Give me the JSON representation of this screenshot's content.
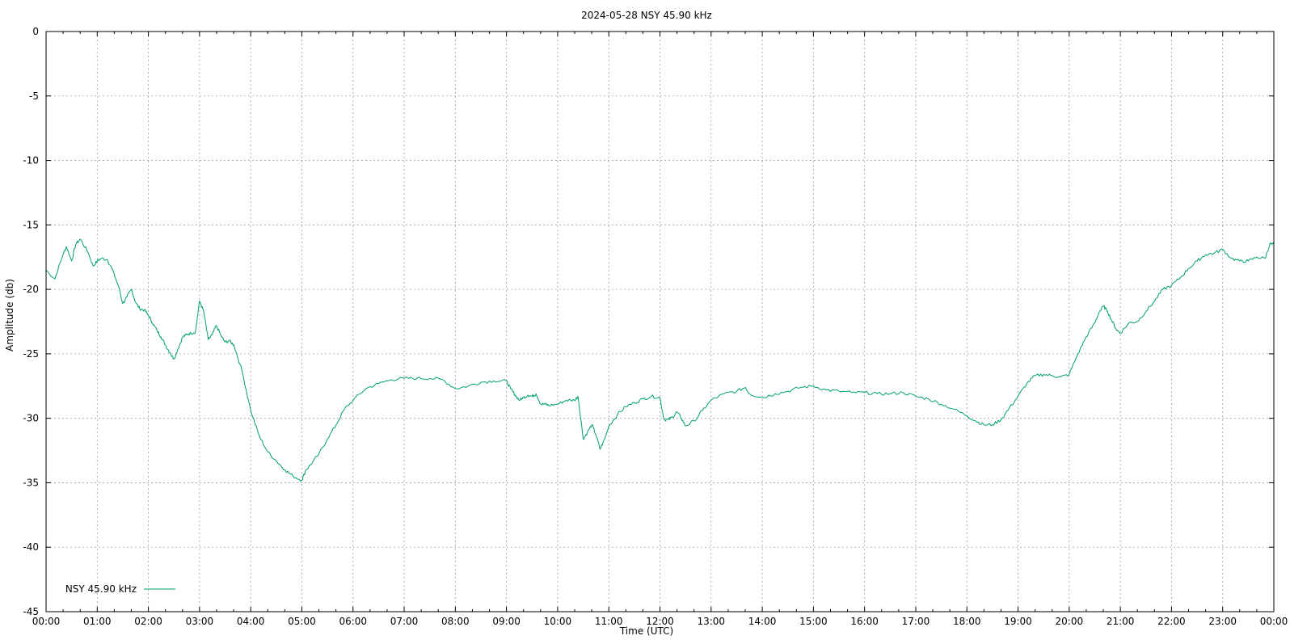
{
  "chart_data": {
    "type": "line",
    "title": "2024-05-28 NSY 45.90 kHz",
    "xlabel": "Time (UTC)",
    "ylabel": "Amplitude (db)",
    "x_unit": "hours UTC",
    "xlim": [
      0,
      24
    ],
    "ylim": [
      -45,
      0
    ],
    "x_ticks": [
      {
        "value": 0,
        "label": "00:00"
      },
      {
        "value": 1,
        "label": "01:00"
      },
      {
        "value": 2,
        "label": "02:00"
      },
      {
        "value": 3,
        "label": "03:00"
      },
      {
        "value": 4,
        "label": "04:00"
      },
      {
        "value": 5,
        "label": "05:00"
      },
      {
        "value": 6,
        "label": "06:00"
      },
      {
        "value": 7,
        "label": "07:00"
      },
      {
        "value": 8,
        "label": "08:00"
      },
      {
        "value": 9,
        "label": "09:00"
      },
      {
        "value": 10,
        "label": "10:00"
      },
      {
        "value": 11,
        "label": "11:00"
      },
      {
        "value": 12,
        "label": "12:00"
      },
      {
        "value": 13,
        "label": "13:00"
      },
      {
        "value": 14,
        "label": "14:00"
      },
      {
        "value": 15,
        "label": "15:00"
      },
      {
        "value": 16,
        "label": "16:00"
      },
      {
        "value": 17,
        "label": "17:00"
      },
      {
        "value": 18,
        "label": "18:00"
      },
      {
        "value": 19,
        "label": "19:00"
      },
      {
        "value": 20,
        "label": "20:00"
      },
      {
        "value": 21,
        "label": "21:00"
      },
      {
        "value": 22,
        "label": "22:00"
      },
      {
        "value": 23,
        "label": "23:00"
      },
      {
        "value": 24,
        "label": "00:00"
      }
    ],
    "y_ticks": [
      {
        "value": 0,
        "label": "0"
      },
      {
        "value": -5,
        "label": "-5"
      },
      {
        "value": -10,
        "label": "-10"
      },
      {
        "value": -15,
        "label": "-15"
      },
      {
        "value": -20,
        "label": "-20"
      },
      {
        "value": -25,
        "label": "-25"
      },
      {
        "value": -30,
        "label": "-30"
      },
      {
        "value": -35,
        "label": "-35"
      },
      {
        "value": -40,
        "label": "-40"
      },
      {
        "value": -45,
        "label": "-45"
      }
    ],
    "grid": true,
    "legend_position": "bottom-left",
    "series": [
      {
        "name": "NSY 45.90 kHz",
        "color": "#009e73",
        "x": [
          0.0,
          0.17,
          0.33,
          0.4,
          0.5,
          0.58,
          0.67,
          0.83,
          0.92,
          1.0,
          1.08,
          1.2,
          1.3,
          1.42,
          1.5,
          1.58,
          1.67,
          1.75,
          1.83,
          1.92,
          2.0,
          2.08,
          2.17,
          2.25,
          2.33,
          2.42,
          2.5,
          2.58,
          2.67,
          2.75,
          2.83,
          2.92,
          3.0,
          3.08,
          3.17,
          3.25,
          3.33,
          3.42,
          3.5,
          3.58,
          3.67,
          3.83,
          4.0,
          4.17,
          4.33,
          4.5,
          4.67,
          4.83,
          5.0,
          5.08,
          5.17,
          5.33,
          5.5,
          5.67,
          5.83,
          6.0,
          6.25,
          6.5,
          6.75,
          7.0,
          7.25,
          7.5,
          7.75,
          8.0,
          8.25,
          8.5,
          8.75,
          9.0,
          9.08,
          9.17,
          9.25,
          9.33,
          9.42,
          9.5,
          9.58,
          9.67,
          9.75,
          9.83,
          10.0,
          10.17,
          10.33,
          10.4,
          10.5,
          10.58,
          10.67,
          10.75,
          10.83,
          10.92,
          11.0,
          11.17,
          11.33,
          11.5,
          11.67,
          11.83,
          12.0,
          12.08,
          12.17,
          12.25,
          12.33,
          12.42,
          12.5,
          12.67,
          12.83,
          13.0,
          13.25,
          13.5,
          13.67,
          13.75,
          14.0,
          14.25,
          14.5,
          14.75,
          15.0,
          15.25,
          15.5,
          15.75,
          16.0,
          16.25,
          16.5,
          16.75,
          17.0,
          17.25,
          17.5,
          17.75,
          18.0,
          18.17,
          18.33,
          18.5,
          18.67,
          18.83,
          19.0,
          19.17,
          19.33,
          19.5,
          19.67,
          19.83,
          20.0,
          20.17,
          20.33,
          20.5,
          20.58,
          20.67,
          20.75,
          20.83,
          20.92,
          21.0,
          21.17,
          21.33,
          21.5,
          21.67,
          21.83,
          22.0,
          22.17,
          22.33,
          22.5,
          22.67,
          22.83,
          23.0,
          23.17,
          23.33,
          23.5,
          23.67,
          23.83,
          23.92,
          24.0
        ],
        "y": [
          -18.5,
          -19.2,
          -17.3,
          -16.7,
          -17.8,
          -16.5,
          -16.1,
          -17.2,
          -18.2,
          -17.8,
          -17.6,
          -17.7,
          -18.5,
          -19.8,
          -21.1,
          -20.6,
          -20.0,
          -21.0,
          -21.5,
          -21.6,
          -22.0,
          -22.6,
          -23.2,
          -23.7,
          -24.3,
          -24.9,
          -25.4,
          -24.6,
          -23.7,
          -23.5,
          -23.4,
          -23.3,
          -20.9,
          -21.7,
          -23.9,
          -23.5,
          -22.8,
          -23.6,
          -24.1,
          -24.0,
          -24.3,
          -26.3,
          -29.4,
          -31.4,
          -32.6,
          -33.3,
          -34.0,
          -34.5,
          -34.8,
          -34.0,
          -33.6,
          -32.8,
          -31.6,
          -30.5,
          -29.3,
          -28.6,
          -27.7,
          -27.3,
          -27.0,
          -26.9,
          -26.9,
          -26.9,
          -27.0,
          -27.7,
          -27.5,
          -27.2,
          -27.1,
          -27.1,
          -27.7,
          -28.2,
          -28.6,
          -28.4,
          -28.2,
          -28.3,
          -28.1,
          -28.9,
          -28.9,
          -29.0,
          -28.9,
          -28.6,
          -28.6,
          -28.3,
          -31.6,
          -31.1,
          -30.5,
          -31.3,
          -32.4,
          -31.6,
          -30.6,
          -29.7,
          -29.1,
          -28.8,
          -28.5,
          -28.3,
          -28.4,
          -30.1,
          -30.1,
          -29.9,
          -29.5,
          -30.0,
          -30.6,
          -30.2,
          -29.4,
          -28.6,
          -28.1,
          -27.9,
          -27.6,
          -28.1,
          -28.4,
          -28.1,
          -27.9,
          -27.6,
          -27.5,
          -27.8,
          -27.9,
          -28.0,
          -28.0,
          -28.1,
          -28.1,
          -28.0,
          -28.3,
          -28.5,
          -28.9,
          -29.3,
          -29.8,
          -30.2,
          -30.5,
          -30.5,
          -30.1,
          -29.2,
          -28.3,
          -27.3,
          -26.7,
          -26.6,
          -26.7,
          -26.8,
          -26.6,
          -25.0,
          -23.7,
          -22.6,
          -21.8,
          -21.3,
          -21.7,
          -22.4,
          -23.1,
          -23.4,
          -22.6,
          -22.5,
          -21.7,
          -20.9,
          -20.0,
          -19.7,
          -19.1,
          -18.4,
          -17.8,
          -17.3,
          -17.2,
          -16.9,
          -17.6,
          -17.8,
          -17.8,
          -17.5,
          -17.6,
          -16.5,
          -16.5
        ]
      }
    ]
  }
}
